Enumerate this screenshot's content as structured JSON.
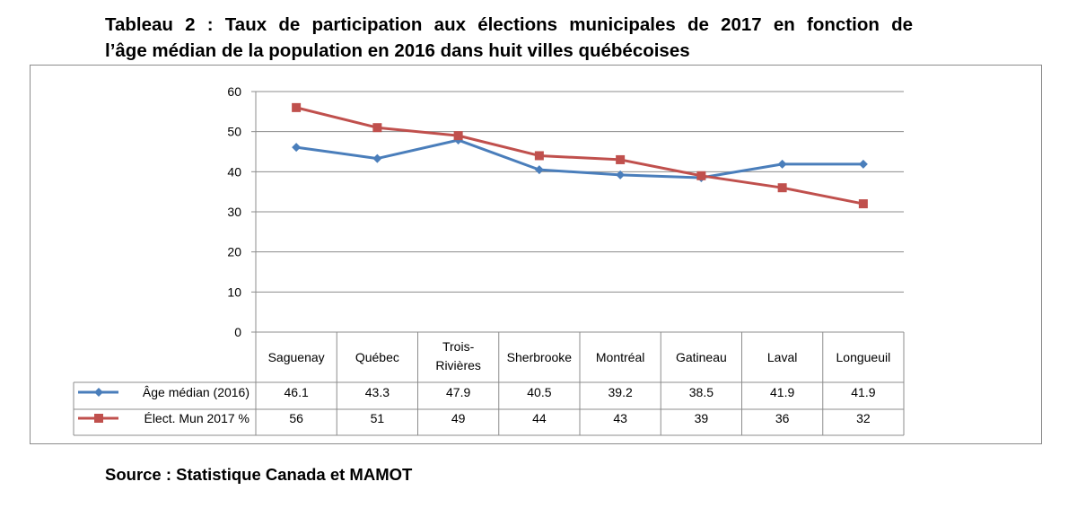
{
  "title_line1": "Tableau 2 : Taux de participation aux élections municipales de 2017 en fonction de",
  "title_line2": "l’âge médian de la population en 2016 dans huit villes québécoises",
  "source": "Source : Statistique Canada et MAMOT",
  "chart_data": {
    "type": "line",
    "title": "Tableau 2 : Taux de participation aux élections municipales de 2017 en fonction de l’âge médian de la population en 2016 dans huit villes québécoises",
    "categories": [
      [
        "Saguenay"
      ],
      [
        "Québec"
      ],
      [
        "Trois-",
        "Rivières"
      ],
      [
        "Sherbrooke"
      ],
      [
        "Montréal"
      ],
      [
        "Gatineau"
      ],
      [
        "Laval"
      ],
      [
        "Longueuil"
      ]
    ],
    "series": [
      {
        "name": "Âge médian (2016)",
        "color": "#4a7ebb",
        "marker": "diamond",
        "values": [
          46.1,
          43.3,
          47.9,
          40.5,
          39.2,
          38.5,
          41.9,
          41.9
        ],
        "labels": [
          "46.1",
          "43.3",
          "47.9",
          "40.5",
          "39.2",
          "38.5",
          "41.9",
          "41.9"
        ]
      },
      {
        "name": "Élect. Mun 2017 %",
        "color": "#c0504d",
        "marker": "square",
        "values": [
          56,
          51,
          49,
          44,
          43,
          39,
          36,
          32
        ],
        "labels": [
          "56",
          "51",
          "49",
          "44",
          "43",
          "39",
          "36",
          "32"
        ]
      }
    ],
    "ylim": [
      0,
      60
    ],
    "yticks": [
      0,
      10,
      20,
      30,
      40,
      50,
      60
    ],
    "grid": true,
    "legend": "data-table",
    "xlabel": "",
    "ylabel": ""
  }
}
